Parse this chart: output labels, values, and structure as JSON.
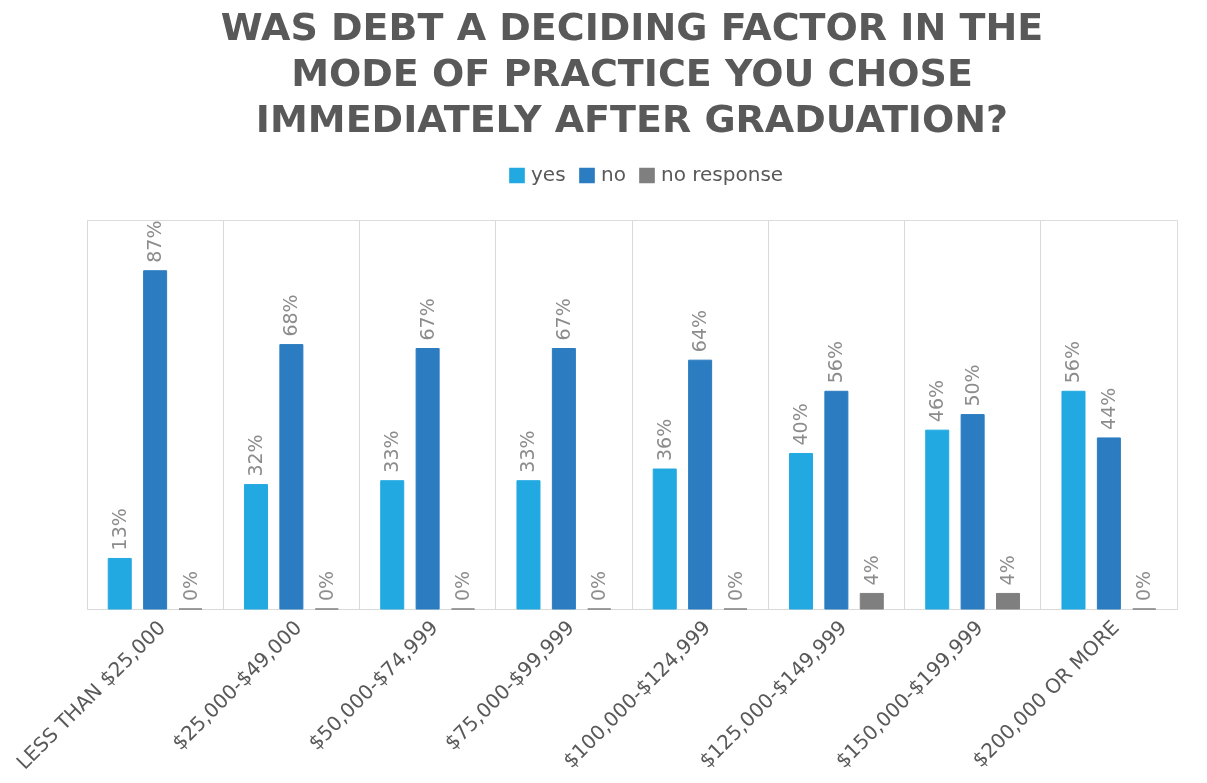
{
  "chart_data": {
    "type": "bar",
    "title": [
      "WAS DEBT A DECIDING FACTOR IN THE",
      "MODE OF PRACTICE YOU CHOSE",
      "IMMEDIATELY AFTER GRADUATION?"
    ],
    "categories": [
      "LESS THAN $25,000",
      "$25,000-$49,000",
      "$50,000-$74,999",
      "$75,000-$99,999",
      "$100,000-$124,999",
      "$125,000-$149,999",
      "$150,000-$199,999",
      "$200,000 OR MORE"
    ],
    "series": [
      {
        "name": "yes",
        "color": "#22a9e1",
        "values": [
          13,
          32,
          33,
          33,
          36,
          40,
          46,
          56
        ],
        "value_labels": [
          "13%",
          "32%",
          "33%",
          "33%",
          "36%",
          "40%",
          "46%",
          "56%"
        ]
      },
      {
        "name": "no",
        "color": "#2b7cc1",
        "values": [
          87,
          68,
          67,
          67,
          64,
          56,
          50,
          44
        ],
        "value_labels": [
          "87%",
          "68%",
          "67%",
          "67%",
          "64%",
          "56%",
          "50%",
          "44%"
        ]
      },
      {
        "name": "no response",
        "color": "#7f7f7f",
        "values": [
          0,
          0,
          0,
          0,
          0,
          4,
          4,
          0
        ],
        "value_labels": [
          "0%",
          "0%",
          "0%",
          "0%",
          "0%",
          "4%",
          "4%",
          "0%"
        ]
      }
    ],
    "grid": "x",
    "legend": "top"
  }
}
